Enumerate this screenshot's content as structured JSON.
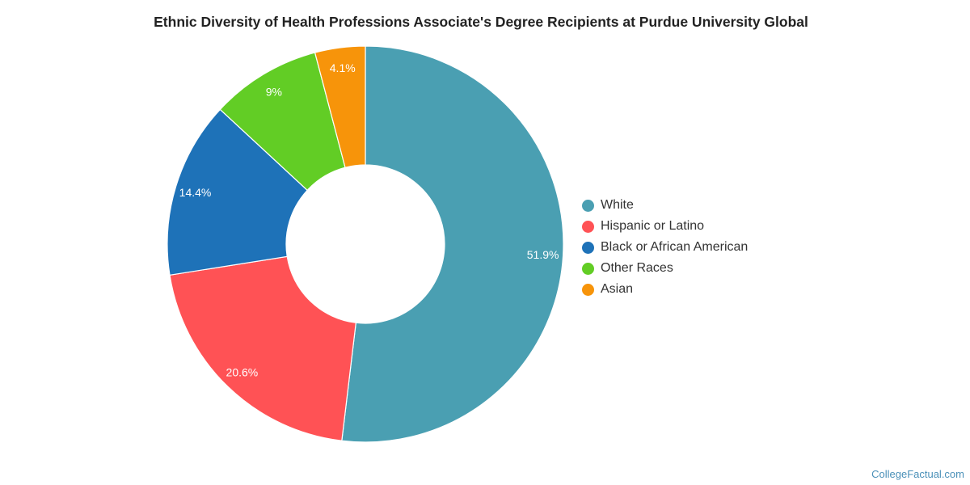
{
  "title": "Ethnic Diversity of Health Professions Associate's Degree Recipients at Purdue University Global",
  "watermark": "CollegeFactual.com",
  "chart_data": {
    "type": "pie",
    "variant": "donut",
    "title": "Ethnic Diversity of Health Professions Associate's Degree Recipients at Purdue University Global",
    "legend_position": "right",
    "slices": [
      {
        "label": "White",
        "value": 51.9,
        "display": "51.9%",
        "color": "#4a9fb2"
      },
      {
        "label": "Hispanic or Latino",
        "value": 20.6,
        "display": "20.6%",
        "color": "#ff5255"
      },
      {
        "label": "Black or African American",
        "value": 14.4,
        "display": "14.4%",
        "color": "#1e72b8"
      },
      {
        "label": "Other Races",
        "value": 9,
        "display": "9%",
        "color": "#62cd25"
      },
      {
        "label": "Asian",
        "value": 4.1,
        "display": "4.1%",
        "color": "#f7940a"
      }
    ]
  }
}
